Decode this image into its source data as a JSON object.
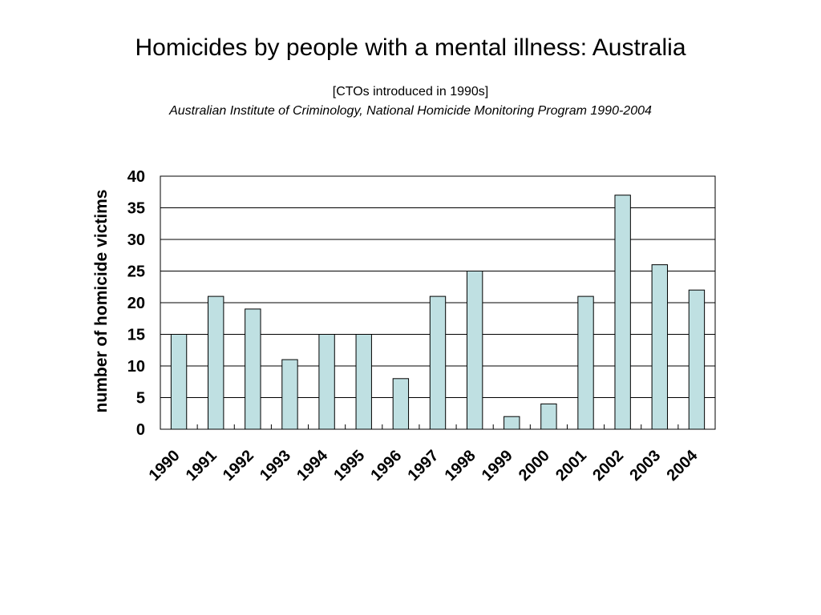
{
  "header": {
    "title": "Homicides by people with a mental illness: Australia",
    "subtitle": "[CTOs introduced in 1990s]",
    "source": "Australian Institute of Criminology, National Homicide Monitoring Program 1990-2004"
  },
  "chart_data": {
    "type": "bar",
    "title": "Homicides by people with a mental illness: Australia",
    "xlabel": "",
    "ylabel": "number of homicide victims",
    "categories": [
      "1990",
      "1991",
      "1992",
      "1993",
      "1994",
      "1995",
      "1996",
      "1997",
      "1998",
      "1999",
      "2000",
      "2001",
      "2002",
      "2003",
      "2004"
    ],
    "values": [
      15,
      21,
      19,
      11,
      15,
      15,
      8,
      21,
      25,
      2,
      4,
      21,
      37,
      26,
      22
    ],
    "ylim": [
      0,
      40
    ],
    "yticks": [
      0,
      5,
      10,
      15,
      20,
      25,
      30,
      35,
      40
    ],
    "grid": true,
    "legend": "none",
    "colors": {
      "bar_fill": "#bfe0e2",
      "bar_stroke": "#000000",
      "grid": "#000000"
    }
  }
}
